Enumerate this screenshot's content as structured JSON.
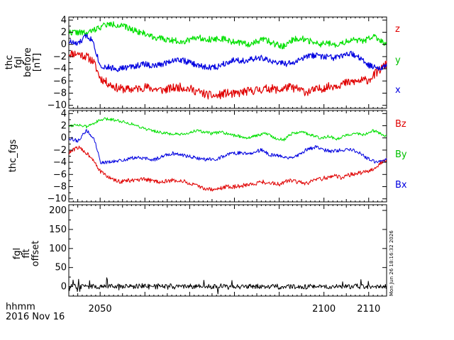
{
  "chart_data": [
    {
      "type": "line",
      "panel": "fgl_before",
      "ylabel_lines": [
        "thc",
        "fgl",
        "before",
        "[nT]"
      ],
      "ylim": [
        -10.5,
        4.5
      ],
      "yticks": [
        -10,
        -8,
        -6,
        -4,
        -2,
        0,
        2,
        4
      ],
      "xlim": [
        2043,
        2114
      ],
      "series": [
        {
          "name": "z",
          "color": "#e00000",
          "linewidth": 1.2,
          "noise": 0.7,
          "seed": 11,
          "x": [
            2043,
            2045,
            2047,
            2048.5,
            2050,
            2052,
            2054,
            2056,
            2058,
            2060,
            2062,
            2064,
            2066,
            2068,
            2070,
            2072,
            2074,
            2076,
            2078,
            2080,
            2082,
            2084,
            2086,
            2088,
            2090,
            2092,
            2094,
            2096,
            2098,
            2100,
            2102,
            2104,
            2106,
            2108,
            2110,
            2112,
            2114
          ],
          "y": [
            -1.5,
            -1.5,
            -2,
            -2.8,
            -5.5,
            -6.5,
            -7.2,
            -7.4,
            -7.3,
            -7.0,
            -7.3,
            -7.5,
            -7.2,
            -7.0,
            -7.3,
            -7.8,
            -8.3,
            -8.5,
            -8.0,
            -8.2,
            -7.8,
            -7.6,
            -7.4,
            -7.2,
            -7.5,
            -7.0,
            -7.3,
            -7.8,
            -7.5,
            -7.1,
            -6.8,
            -6.5,
            -6.2,
            -6.0,
            -5.8,
            -4.5,
            -3.2
          ]
        },
        {
          "name": "y",
          "color": "#00e000",
          "linewidth": 1.2,
          "noise": 0.5,
          "seed": 22,
          "x": [
            2043,
            2045,
            2047,
            2049,
            2051,
            2053,
            2055,
            2057,
            2059,
            2061,
            2063,
            2065,
            2067,
            2069,
            2071,
            2073,
            2075,
            2077,
            2079,
            2081,
            2083,
            2085,
            2087,
            2089,
            2091,
            2093,
            2095,
            2097,
            2099,
            2101,
            2103,
            2105,
            2107,
            2109,
            2111,
            2114
          ],
          "y": [
            2.0,
            2.0,
            1.8,
            2.5,
            3.2,
            3.3,
            3.0,
            2.5,
            2.0,
            1.5,
            1.0,
            0.8,
            0.6,
            0.5,
            1.2,
            1.0,
            0.8,
            1.0,
            0.5,
            0.3,
            0.0,
            0.5,
            0.8,
            0.0,
            -0.3,
            0.8,
            1.0,
            0.5,
            0.0,
            0.2,
            -0.3,
            0.5,
            0.8,
            0.5,
            1.5,
            0.0
          ]
        },
        {
          "name": "x",
          "color": "#0000e0",
          "linewidth": 1.2,
          "noise": 0.5,
          "seed": 33,
          "x": [
            2043,
            2045,
            2047,
            2048.5,
            2049.2,
            2050,
            2052,
            2054,
            2056,
            2058,
            2060,
            2062,
            2064,
            2066,
            2068,
            2070,
            2072,
            2074,
            2076,
            2078,
            2080,
            2082,
            2084,
            2086,
            2088,
            2090,
            2092,
            2094,
            2096,
            2098,
            2100,
            2102,
            2104,
            2106,
            2108,
            2110,
            2112,
            2114
          ],
          "y": [
            0.5,
            0.0,
            1.5,
            0.5,
            -1.5,
            -3.5,
            -3.8,
            -4.0,
            -3.8,
            -3.5,
            -3.2,
            -3.6,
            -3.2,
            -2.6,
            -2.5,
            -3.0,
            -3.5,
            -3.8,
            -3.7,
            -3.0,
            -2.5,
            -2.7,
            -2.5,
            -2.2,
            -2.8,
            -3.0,
            -3.2,
            -2.8,
            -2.0,
            -1.8,
            -2.0,
            -2.2,
            -2.0,
            -1.5,
            -2.2,
            -3.5,
            -3.8,
            -3.5
          ]
        }
      ]
    },
    {
      "type": "line",
      "panel": "fgs",
      "ylabel_lines": [
        "thc_fgs"
      ],
      "ylim": [
        -10.5,
        4.5
      ],
      "yticks": [
        -10,
        -8,
        -6,
        -4,
        -2,
        0,
        2,
        4
      ],
      "xlim": [
        2043,
        2114
      ],
      "series": [
        {
          "name": "Bz",
          "color": "#e00000",
          "linewidth": 1.0,
          "noise": 0.35,
          "seed": 44,
          "x": [
            2043,
            2045,
            2047,
            2048.5,
            2050,
            2052,
            2054,
            2056,
            2058,
            2060,
            2062,
            2064,
            2066,
            2068,
            2070,
            2072,
            2074,
            2076,
            2078,
            2080,
            2082,
            2084,
            2086,
            2088,
            2090,
            2092,
            2094,
            2096,
            2098,
            2100,
            2102,
            2104,
            2106,
            2108,
            2110,
            2112,
            2114
          ],
          "y": [
            -2.5,
            -1.5,
            -2.5,
            -3.5,
            -5.5,
            -6.5,
            -7.2,
            -7.0,
            -7.0,
            -6.8,
            -7.1,
            -7.2,
            -7.0,
            -7.0,
            -7.5,
            -8.0,
            -8.4,
            -8.5,
            -8.0,
            -8.0,
            -7.8,
            -7.6,
            -7.2,
            -7.4,
            -7.6,
            -7.0,
            -7.2,
            -7.5,
            -7.0,
            -6.6,
            -6.2,
            -6.5,
            -6.0,
            -5.8,
            -5.5,
            -4.5,
            -3.5
          ]
        },
        {
          "name": "By",
          "color": "#00e000",
          "linewidth": 1.0,
          "noise": 0.25,
          "seed": 55,
          "x": [
            2043,
            2045,
            2047,
            2049,
            2051,
            2053,
            2055,
            2057,
            2059,
            2061,
            2063,
            2065,
            2067,
            2069,
            2071,
            2073,
            2075,
            2077,
            2079,
            2081,
            2083,
            2085,
            2087,
            2089,
            2091,
            2093,
            2095,
            2097,
            2099,
            2101,
            2103,
            2105,
            2107,
            2109,
            2111,
            2114
          ],
          "y": [
            2.0,
            2.2,
            1.8,
            2.6,
            3.1,
            3.0,
            2.7,
            2.3,
            1.8,
            1.3,
            1.0,
            0.7,
            0.6,
            0.5,
            1.2,
            1.0,
            0.7,
            1.0,
            0.5,
            0.3,
            0.0,
            0.4,
            0.8,
            0.0,
            -0.3,
            0.8,
            1.0,
            0.5,
            0.0,
            0.3,
            -0.2,
            0.5,
            0.8,
            0.5,
            1.2,
            0.3
          ]
        },
        {
          "name": "Bx",
          "color": "#0000e0",
          "linewidth": 1.0,
          "noise": 0.3,
          "seed": 66,
          "x": [
            2043,
            2045,
            2047,
            2048.5,
            2049.2,
            2050,
            2052,
            2054,
            2056,
            2058,
            2060,
            2062,
            2064,
            2066,
            2068,
            2070,
            2072,
            2074,
            2076,
            2078,
            2080,
            2082,
            2084,
            2086,
            2088,
            2090,
            2092,
            2094,
            2096,
            2098,
            2100,
            2102,
            2104,
            2106,
            2108,
            2110,
            2112,
            2114
          ],
          "y": [
            0.0,
            -0.5,
            1.2,
            0.0,
            -1.5,
            -4.0,
            -4.0,
            -3.8,
            -3.5,
            -3.2,
            -3.4,
            -3.6,
            -3.0,
            -2.5,
            -2.8,
            -3.0,
            -3.4,
            -3.5,
            -3.5,
            -2.8,
            -2.5,
            -2.5,
            -2.4,
            -2.0,
            -2.8,
            -3.0,
            -3.2,
            -3.0,
            -2.0,
            -1.5,
            -2.0,
            -2.2,
            -2.0,
            -1.8,
            -2.5,
            -3.5,
            -4.0,
            -3.5
          ]
        }
      ]
    },
    {
      "type": "line",
      "panel": "fgl_fit_offset",
      "ylabel_lines": [
        "fgl",
        "fit",
        "offset"
      ],
      "ylim": [
        -25,
        215
      ],
      "yticks": [
        0,
        50,
        100,
        150,
        200
      ],
      "xlim": [
        2043,
        2114
      ],
      "xticks": [
        2050,
        2100,
        2110
      ],
      "series": [
        {
          "name": "",
          "color": "#000000",
          "linewidth": 1.0,
          "noise": 0,
          "seed": 77,
          "spiky": true,
          "x": [
            2043,
            2114
          ],
          "y": [
            0,
            0
          ]
        }
      ]
    }
  ],
  "xtick_labels": [
    "2050",
    "2100",
    "2110"
  ],
  "x_axis_label": "hhmm",
  "date_label": "2016 Nov 16",
  "timestamp": "Mon Jun 26 18:16:32 2026"
}
